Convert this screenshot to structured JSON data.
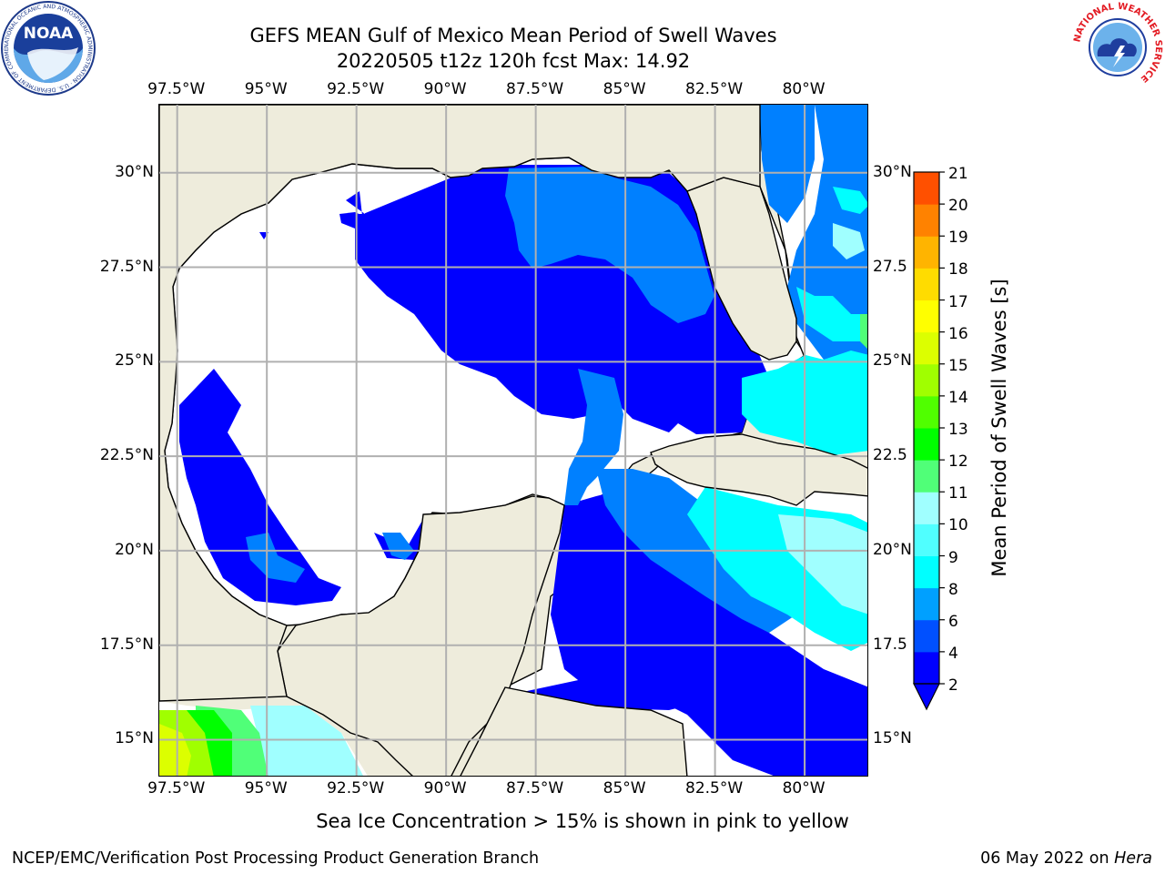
{
  "title": {
    "line1": "GEFS MEAN Gulf of Mexico Mean Period of Swell Waves",
    "line2": "20220505 t12z 120h fcst   Max: 14.92"
  },
  "map": {
    "lon_range": [
      -98.0,
      -78.2
    ],
    "lat_range": [
      14.0,
      31.8
    ],
    "lon_ticks": [
      "97.5°W",
      "95°W",
      "92.5°W",
      "90°W",
      "87.5°W",
      "85°W",
      "82.5°W",
      "80°W"
    ],
    "lon_tick_values": [
      -97.5,
      -95,
      -92.5,
      -90,
      -87.5,
      -85,
      -82.5,
      -80
    ],
    "lat_ticks": [
      "15°N",
      "17.5°N",
      "20°N",
      "22.5°N",
      "25°N",
      "27.5°N",
      "30°N"
    ],
    "lat_tick_values": [
      15,
      17.5,
      20,
      22.5,
      25,
      27.5,
      30
    ],
    "right_lat_ticks": [
      "15°N",
      "17.5",
      "20°N",
      "22.5",
      "25°N",
      "27.5",
      "30°N"
    ],
    "land_color": "#eeecdc",
    "gridline_color": "#b0b0b0"
  },
  "colorbar": {
    "label": "Mean Period of Swell Waves [s]",
    "ticks": [
      "2",
      "4",
      "6",
      "8",
      "9",
      "10",
      "11",
      "12",
      "13",
      "14",
      "15",
      "16",
      "17",
      "18",
      "19",
      "20",
      "21"
    ],
    "colors": [
      "#0000ff",
      "#0050ff",
      "#00a0ff",
      "#00ffff",
      "#50ffff",
      "#a0ffff",
      "#50ff78",
      "#00ff00",
      "#50ff00",
      "#a0ff00",
      "#dcff00",
      "#ffff00",
      "#ffdc00",
      "#ffb400",
      "#ff8200",
      "#ff5000",
      "#ff2800",
      "#ff0000"
    ],
    "extend_min_color": "#0000ff"
  },
  "footer": {
    "note": "Sea Ice Concentration > 15% is shown in pink to yellow",
    "credit_left": "NCEP/EMC/Verification Post Processing Product Generation Branch",
    "date": "06 May 2022 on ",
    "machine": "Hera"
  },
  "logos": {
    "left": "NOAA",
    "left_ring": "NATIONAL OCEANIC AND ATMOSPHERIC ADMINISTRATION · U.S. DEPARTMENT OF COMMERCE",
    "right_ring": "NATIONAL WEATHER SERVICE"
  }
}
